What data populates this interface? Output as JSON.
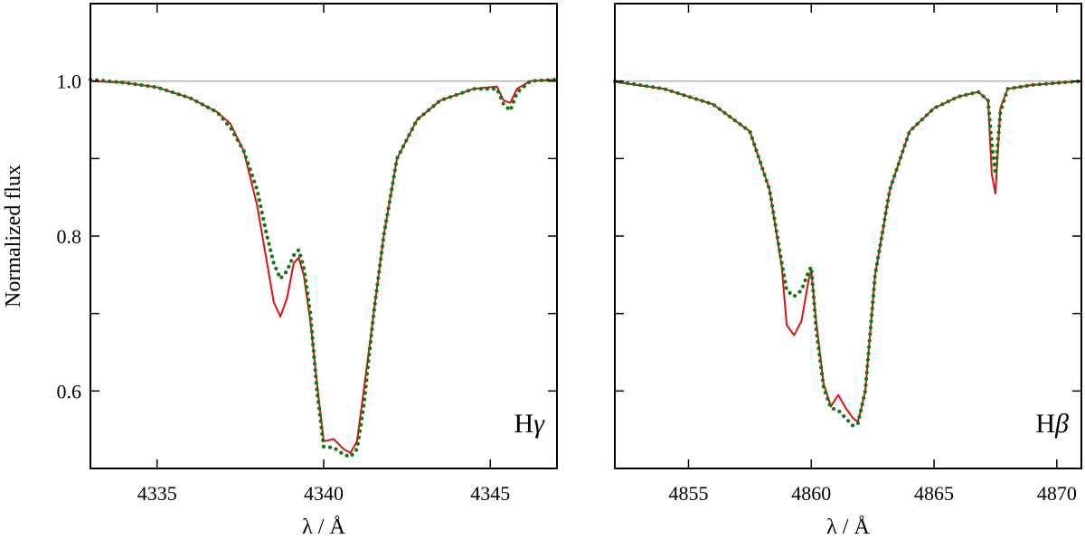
{
  "chart_data": [
    {
      "type": "line",
      "line_label": "Hγ",
      "line_label_prefix": "H",
      "line_label_greek": "γ",
      "xlabel": "λ / Å",
      "ylabel": "Normalized flux",
      "xlim": [
        4333,
        4347
      ],
      "ylim": [
        0.5,
        1.1
      ],
      "x_ticks": [
        4335,
        4340,
        4345
      ],
      "x_tick_labels": [
        "4335",
        "4340",
        "4345"
      ],
      "y_ticks": [
        0.6,
        0.7,
        0.8,
        0.9,
        1.0
      ],
      "y_tick_labels": [
        "0.6",
        "",
        "0.8",
        "",
        "1.0"
      ],
      "reference_line": 1.0,
      "series": [
        {
          "style": "solid",
          "color": "#dd1111",
          "x": [
            4333,
            4334,
            4335,
            4336,
            4336.8,
            4337.2,
            4337.6,
            4338.0,
            4338.3,
            4338.5,
            4338.7,
            4338.9,
            4339.1,
            4339.25,
            4339.4,
            4339.6,
            4339.8,
            4340.0,
            4340.3,
            4340.6,
            4340.8,
            4341.0,
            4341.2,
            4341.5,
            4341.8,
            4342.2,
            4342.8,
            4343.5,
            4344.5,
            4345.2,
            4345.4,
            4345.6,
            4345.8,
            4346.2,
            4347
          ],
          "y": [
            1.0,
            0.998,
            0.992,
            0.978,
            0.96,
            0.945,
            0.91,
            0.84,
            0.765,
            0.715,
            0.696,
            0.72,
            0.765,
            0.772,
            0.75,
            0.69,
            0.61,
            0.535,
            0.538,
            0.525,
            0.52,
            0.535,
            0.6,
            0.7,
            0.8,
            0.9,
            0.95,
            0.975,
            0.99,
            0.993,
            0.975,
            0.972,
            0.99,
            1.0,
            1.002
          ]
        },
        {
          "style": "dotted",
          "color": "#117711",
          "x": [
            4333,
            4334,
            4335,
            4336,
            4336.8,
            4337.2,
            4337.6,
            4338.0,
            4338.3,
            4338.5,
            4338.7,
            4338.9,
            4339.1,
            4339.25,
            4339.4,
            4339.6,
            4339.8,
            4340.0,
            4340.3,
            4340.6,
            4340.8,
            4341.0,
            4341.2,
            4341.5,
            4341.8,
            4342.2,
            4342.8,
            4343.5,
            4344.5,
            4345.2,
            4345.4,
            4345.6,
            4345.8,
            4346.2,
            4347
          ],
          "y": [
            1.002,
            0.998,
            0.992,
            0.978,
            0.96,
            0.94,
            0.91,
            0.86,
            0.8,
            0.765,
            0.745,
            0.755,
            0.775,
            0.782,
            0.76,
            0.7,
            0.6,
            0.528,
            0.527,
            0.518,
            0.515,
            0.525,
            0.58,
            0.7,
            0.8,
            0.9,
            0.95,
            0.975,
            0.99,
            0.99,
            0.97,
            0.962,
            0.985,
            1.0,
            1.002
          ]
        }
      ]
    },
    {
      "type": "line",
      "line_label": "Hβ",
      "line_label_prefix": "H",
      "line_label_greek": "β",
      "xlabel": "λ / Å",
      "ylabel": "",
      "xlim": [
        4852,
        4871
      ],
      "ylim": [
        0.5,
        1.1
      ],
      "x_ticks": [
        4855,
        4860,
        4865,
        4870
      ],
      "x_tick_labels": [
        "4855",
        "4860",
        "4865",
        "4870"
      ],
      "y_ticks": [
        0.6,
        0.7,
        0.8,
        0.9,
        1.0
      ],
      "y_tick_labels": [
        "",
        "",
        "",
        "",
        ""
      ],
      "reference_line": 1.0,
      "series": [
        {
          "style": "solid",
          "color": "#dd1111",
          "x": [
            4852,
            4854,
            4856,
            4857.5,
            4858.3,
            4858.8,
            4859.0,
            4859.3,
            4859.6,
            4859.9,
            4860.0,
            4860.2,
            4860.5,
            4860.8,
            4861.1,
            4861.4,
            4861.7,
            4861.9,
            4862.2,
            4862.6,
            4863.2,
            4864.0,
            4865.0,
            4866.0,
            4866.8,
            4867.2,
            4867.35,
            4867.5,
            4867.7,
            4868.0,
            4869.0,
            4871
          ],
          "y": [
            0.999,
            0.99,
            0.97,
            0.935,
            0.86,
            0.76,
            0.685,
            0.672,
            0.69,
            0.745,
            0.755,
            0.69,
            0.61,
            0.58,
            0.595,
            0.578,
            0.565,
            0.56,
            0.6,
            0.75,
            0.86,
            0.935,
            0.965,
            0.98,
            0.986,
            0.975,
            0.88,
            0.855,
            0.965,
            0.99,
            0.995,
            1.0
          ]
        },
        {
          "style": "dotted",
          "color": "#117711",
          "x": [
            4852,
            4854,
            4856,
            4857.5,
            4858.3,
            4858.8,
            4859.0,
            4859.3,
            4859.6,
            4859.9,
            4860.0,
            4860.2,
            4860.5,
            4860.8,
            4861.1,
            4861.4,
            4861.7,
            4861.9,
            4862.2,
            4862.6,
            4863.2,
            4864.0,
            4865.0,
            4866.0,
            4866.8,
            4867.2,
            4867.35,
            4867.5,
            4867.7,
            4868.0,
            4869.0,
            4871
          ],
          "y": [
            1.0,
            0.99,
            0.97,
            0.935,
            0.86,
            0.765,
            0.73,
            0.722,
            0.73,
            0.755,
            0.76,
            0.68,
            0.605,
            0.578,
            0.575,
            0.565,
            0.555,
            0.558,
            0.6,
            0.75,
            0.86,
            0.935,
            0.965,
            0.98,
            0.986,
            0.975,
            0.92,
            0.88,
            0.96,
            0.99,
            0.995,
            1.0
          ]
        }
      ]
    }
  ]
}
